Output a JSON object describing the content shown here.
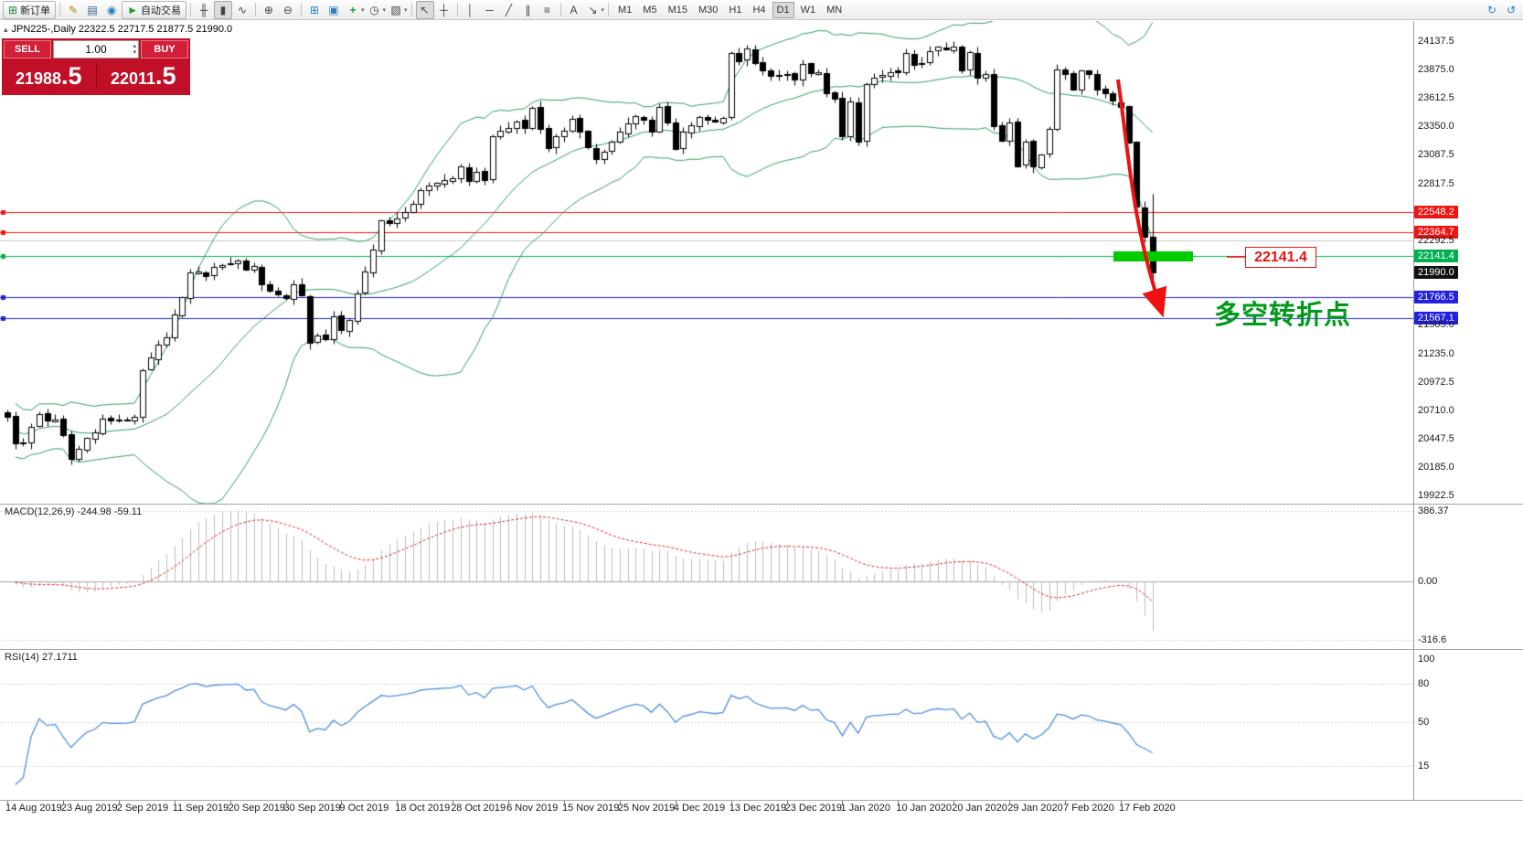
{
  "toolbar": {
    "new_order": "新订单",
    "auto_trading": "自动交易",
    "timeframes": [
      "M1",
      "M5",
      "M15",
      "M30",
      "H1",
      "H4",
      "D1",
      "W1",
      "MN"
    ],
    "active_timeframe": "D1"
  },
  "icons": {
    "new_order": "⊞",
    "metaeditor": "✎",
    "market_watch": "▤",
    "options": "◉",
    "autotrading_play": "►",
    "bar_chart": "╫",
    "candlestick_chart": "▮",
    "line_chart": "∿",
    "zoom_in": "⊕",
    "zoom_out": "⊖",
    "tile_windows": "⊞",
    "cascade_windows": "▣",
    "indicators_plus": "+",
    "periods_clock": "◷",
    "template": "▧",
    "cursor": "↖",
    "crosshair": "┼",
    "vertical_line": "│",
    "horizontal_line": "─",
    "trendline": "╱",
    "channel": "∥",
    "fibonacci": "≡",
    "text": "A",
    "arrow_tool": "↘",
    "caret": "▾",
    "sync": "↻",
    "community": "↺",
    "collapse_triangle": "▴",
    "spin_up": "▴",
    "spin_down": "▾"
  },
  "symbol_line": "JPN225-,Daily  22322.5 22717.5 21877.5 21990.0",
  "order_panel": {
    "sell_label": "SELL",
    "buy_label": "BUY",
    "volume": "1.00",
    "sell_price": "21988",
    "sell_pip": ".5",
    "buy_price": "22011",
    "buy_pip": ".5"
  },
  "annotations": {
    "price_callout": "22141.4",
    "turning_point_text": "多空转折点"
  },
  "indicator_labels": {
    "macd": "MACD(12,26,9) -244.98 -59.11",
    "rsi": "RSI(14) 27.1711"
  },
  "price_scale": [
    {
      "text": "24137.5",
      "price": 24137.5,
      "style": "plain"
    },
    {
      "text": "23875.0",
      "price": 23875.0,
      "style": "plain"
    },
    {
      "text": "23612.5",
      "price": 23612.5,
      "style": "plain"
    },
    {
      "text": "23350.0",
      "price": 23350.0,
      "style": "plain"
    },
    {
      "text": "23087.5",
      "price": 23087.5,
      "style": "plain"
    },
    {
      "text": "22817.5",
      "price": 22817.5,
      "style": "plain"
    },
    {
      "text": "22548.2",
      "price": 22548.2,
      "style": "red"
    },
    {
      "text": "22364.7",
      "price": 22364.7,
      "style": "red"
    },
    {
      "text": "22292.5",
      "price": 22292.5,
      "style": "plain"
    },
    {
      "text": "22141.4",
      "price": 22141.4,
      "style": "green"
    },
    {
      "text": "21990.0",
      "price": 21990.0,
      "style": "black"
    },
    {
      "text": "21766.5",
      "price": 21766.5,
      "style": "blue"
    },
    {
      "text": "21567.1",
      "price": 21567.1,
      "style": "blue"
    },
    {
      "text": "21505.0",
      "price": 21505.0,
      "style": "plain"
    },
    {
      "text": "21235.0",
      "price": 21235.0,
      "style": "plain"
    },
    {
      "text": "20972.5",
      "price": 20972.5,
      "style": "plain"
    },
    {
      "text": "20710.0",
      "price": 20710.0,
      "style": "plain"
    },
    {
      "text": "20447.5",
      "price": 20447.5,
      "style": "plain"
    },
    {
      "text": "20185.0",
      "price": 20185.0,
      "style": "plain"
    },
    {
      "text": "19922.5",
      "price": 19922.5,
      "style": "plain"
    }
  ],
  "macd_scale": [
    {
      "text": "386.37",
      "value": 386.37
    },
    {
      "text": "0.00",
      "value": 0
    },
    {
      "text": "-316.6",
      "value": -316.6
    }
  ],
  "rsi_scale": [
    {
      "text": "100",
      "value": 100
    },
    {
      "text": "80",
      "value": 80
    },
    {
      "text": "50",
      "value": 50
    },
    {
      "text": "15",
      "value": 15
    }
  ],
  "levels": {
    "red": [
      22548.2,
      22364.7
    ],
    "green": [
      22141.4
    ],
    "blue": [
      21766.5,
      21567.1
    ],
    "gray": [
      22292.5
    ],
    "current_price": 21990.0
  },
  "colors": {
    "level_red": "#f01515",
    "level_green": "#00b050",
    "level_blue": "#2222dd",
    "grid_gray": "#c8c8c8",
    "current_price_bg": "#101010",
    "bollinger": "#2e9e62",
    "macd_hist": "#bdbdbd",
    "macd_signal": "#e02828",
    "rsi_line": "#4f8fdc",
    "highlight_green": "#00cc00",
    "arrow_red": "#ee1111",
    "annotation_green": "#009a1a",
    "widget_red": "#c00f26",
    "widget_button_red": "#d2203a"
  },
  "chart_data": {
    "type": "candlestick",
    "symbol": "JPN225-",
    "timeframe": "Daily",
    "visible_ohlc": {
      "open": 22322.5,
      "high": 22717.5,
      "low": 21877.5,
      "close": 21990.0
    },
    "y_range_approx": [
      19849,
      24321
    ],
    "closes": [
      20655,
      20405,
      20420,
      20560,
      20680,
      20620,
      20630,
      20480,
      20260,
      20360,
      20460,
      20510,
      20640,
      20620,
      20620,
      20625,
      20650,
      21085,
      21200,
      21320,
      21390,
      21600,
      21760,
      21990,
      22000,
      21960,
      22040,
      22060,
      22080,
      22098,
      22020,
      22048,
      21878,
      21820,
      21790,
      21755,
      21885,
      21780,
      21340,
      21410,
      21375,
      21587,
      21456,
      21551,
      21798,
      22000,
      22207,
      22472,
      22451,
      22492,
      22548,
      22625,
      22750,
      22799,
      22820,
      22850,
      22867,
      22974,
      22843,
      22927,
      22850,
      23251,
      23303,
      23330,
      23391,
      23331,
      23520,
      23319,
      23141,
      23250,
      23303,
      23416,
      23292,
      23148,
      23038,
      23112,
      23200,
      23292,
      23373,
      23437,
      23409,
      23293,
      23529,
      23379,
      23135,
      23300,
      23354,
      23430,
      23410,
      23391,
      23424,
      24023,
      23952,
      24066,
      23934,
      23864,
      23816,
      23821,
      23830,
      23782,
      23924,
      23837,
      23850,
      23656,
      23600,
      23250,
      23575,
      23204,
      23739,
      23800,
      23820,
      23850,
      23850,
      24025,
      23916,
      23933,
      24041,
      24080,
      24060,
      24083,
      23864,
      24031,
      23795,
      23827,
      23343,
      23215,
      23379,
      22977,
      23205,
      22971,
      23084,
      23319,
      23873,
      23827,
      23685,
      23861,
      23827,
      23687,
      23650,
      23580,
      23523,
      23193,
      22605,
      22322,
      21990
    ],
    "last_bar": {
      "open": 22322.5,
      "high": 22717.5,
      "low": 21877.5,
      "close": 21990.0
    },
    "x_labels": [
      {
        "index": 0,
        "label": "14 Aug 2019"
      },
      {
        "index": 7,
        "label": "23 Aug 2019"
      },
      {
        "index": 14,
        "label": "2 Sep 2019"
      },
      {
        "index": 21,
        "label": "11 Sep 2019"
      },
      {
        "index": 28,
        "label": "20 Sep 2019"
      },
      {
        "index": 35,
        "label": "30 Sep 2019"
      },
      {
        "index": 42,
        "label": "9 Oct 2019"
      },
      {
        "index": 49,
        "label": "18 Oct 2019"
      },
      {
        "index": 56,
        "label": "28 Oct 2019"
      },
      {
        "index": 63,
        "label": "6 Nov 2019"
      },
      {
        "index": 70,
        "label": "15 Nov 2019"
      },
      {
        "index": 77,
        "label": "25 Nov 2019"
      },
      {
        "index": 84,
        "label": "4 Dec 2019"
      },
      {
        "index": 91,
        "label": "13 Dec 2019"
      },
      {
        "index": 98,
        "label": "23 Dec 2019"
      },
      {
        "index": 105,
        "label": "1 Jan 2020"
      },
      {
        "index": 112,
        "label": "10 Jan 2020"
      },
      {
        "index": 119,
        "label": "20 Jan 2020"
      },
      {
        "index": 126,
        "label": "29 Jan 2020"
      },
      {
        "index": 133,
        "label": "7 Feb 2020"
      },
      {
        "index": 140,
        "label": "17 Feb 2020"
      }
    ],
    "indicators": {
      "bollinger": {
        "period": 20,
        "deviation": 2
      },
      "macd": {
        "fast": 12,
        "slow": 26,
        "signal": 9,
        "value": -244.98,
        "signal_value": -59.11
      },
      "rsi": {
        "period": 14,
        "value": 27.1711
      }
    }
  }
}
